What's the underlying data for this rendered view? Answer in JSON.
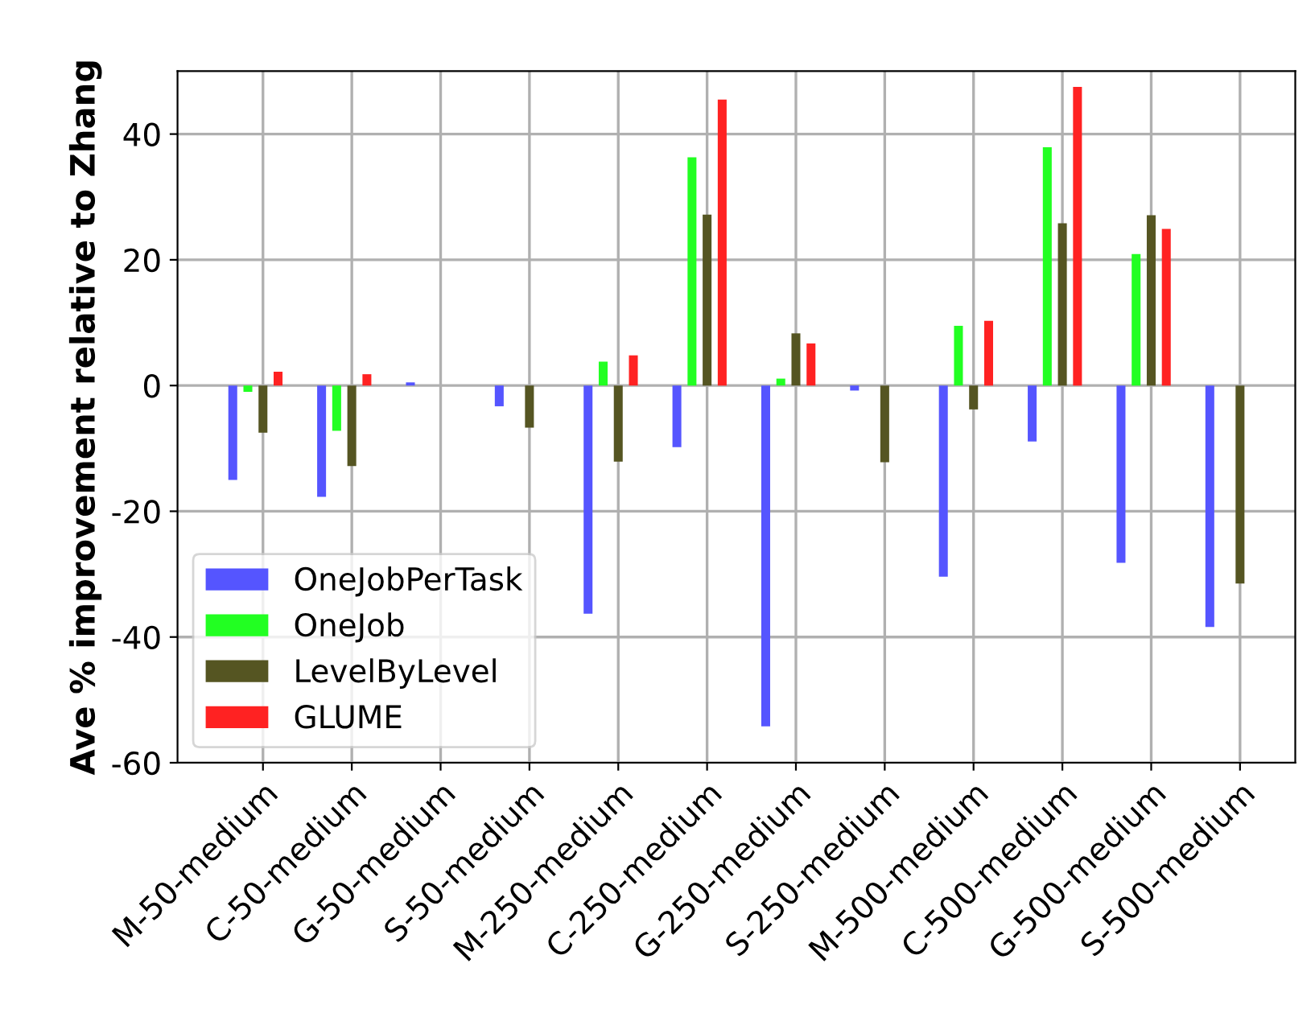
{
  "chart_data": {
    "type": "bar",
    "ylabel": "Ave % improvement relative to Zhang",
    "categories": [
      "M-50-medium",
      "C-50-medium",
      "G-50-medium",
      "S-50-medium",
      "M-250-medium",
      "C-250-medium",
      "G-250-medium",
      "S-250-medium",
      "M-500-medium",
      "C-500-medium",
      "G-500-medium",
      "S-500-medium"
    ],
    "series": [
      {
        "name": "OneJobPerTask",
        "color": "#5555ff",
        "values": [
          -15,
          -17.7,
          0.5,
          -3.3,
          -36.3,
          -9.8,
          -54.2,
          -0.8,
          -30.4,
          -8.9,
          -28.2,
          -38.4
        ]
      },
      {
        "name": "OneJob",
        "color": "#22ff22",
        "values": [
          -1,
          -7.2,
          null,
          null,
          3.8,
          36.3,
          1.1,
          null,
          9.5,
          37.9,
          20.9,
          null
        ]
      },
      {
        "name": "LevelByLevel",
        "color": "#555522",
        "values": [
          -7.5,
          -12.8,
          null,
          -6.7,
          -12.1,
          27.2,
          8.3,
          -12.2,
          -3.8,
          25.8,
          27.1,
          -31.5
        ]
      },
      {
        "name": "GLUME",
        "color": "#ff2222",
        "values": [
          2.2,
          1.8,
          null,
          null,
          4.8,
          45.5,
          6.7,
          null,
          10.3,
          47.5,
          24.9,
          null
        ]
      }
    ],
    "ylim": [
      -60,
      50
    ],
    "yticks": [
      -60,
      -40,
      -20,
      0,
      20,
      40
    ],
    "grid": true,
    "legend": "bottom left"
  }
}
